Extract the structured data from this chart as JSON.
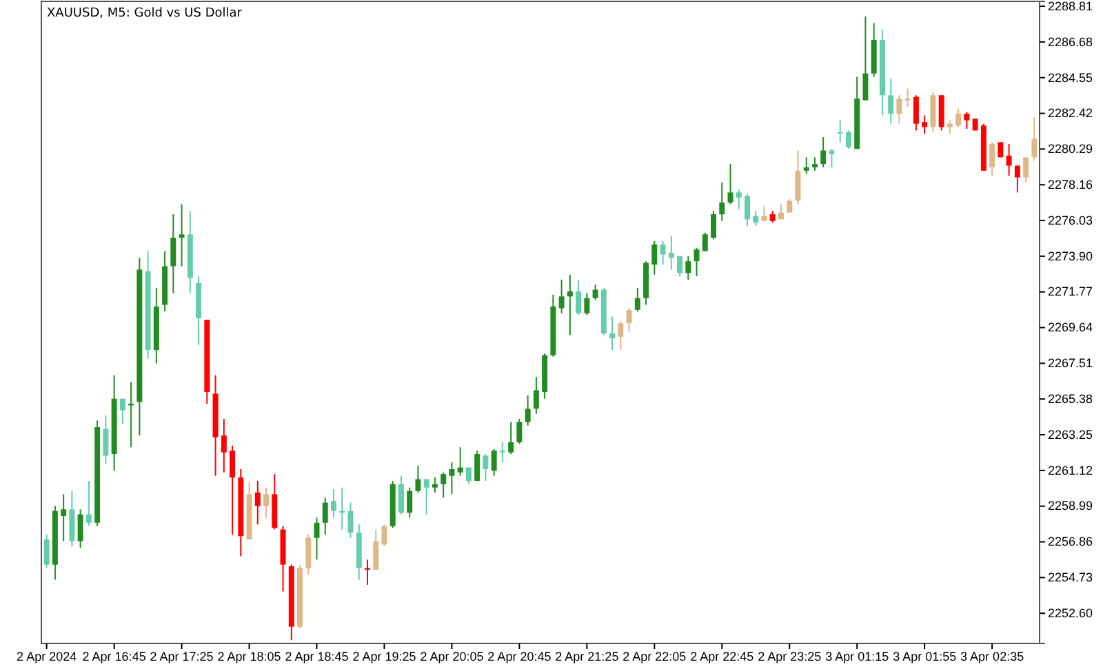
{
  "chart_data": {
    "type": "candlestick",
    "title": "XAUUSD, M5:  Gold vs US Dollar",
    "categories": [
      "2 Apr 2024",
      null,
      null,
      null,
      null,
      null,
      null,
      null,
      "2 Apr 16:45",
      null,
      null,
      null,
      null,
      null,
      null,
      null,
      "2 Apr 17:25",
      null,
      null,
      null,
      null,
      null,
      null,
      null,
      "2 Apr 18:05",
      null,
      null,
      null,
      null,
      null,
      null,
      null,
      "2 Apr 18:45",
      null,
      null,
      null,
      null,
      null,
      null,
      null,
      "2 Apr 19:25",
      null,
      null,
      null,
      null,
      null,
      null,
      null,
      "2 Apr 20:05",
      null,
      null,
      null,
      null,
      null,
      null,
      null,
      "2 Apr 20:45",
      null,
      null,
      null,
      null,
      null,
      null,
      null,
      "2 Apr 21:25",
      null,
      null,
      null,
      null,
      null,
      null,
      null,
      "2 Apr 22:05",
      null,
      null,
      null,
      null,
      null,
      null,
      null,
      "2 Apr 22:45",
      null,
      null,
      null,
      null,
      null,
      null,
      null,
      "2 Apr 23:25",
      null,
      null,
      null,
      null,
      null,
      null,
      null,
      "3 Apr 01:15",
      null,
      null,
      null,
      null,
      null,
      null,
      null,
      "3 Apr 01:55",
      null,
      null,
      null,
      null,
      null,
      null,
      null,
      "3 Apr 02:35",
      null,
      null,
      null,
      null,
      null
    ],
    "ohlc": [
      [
        2257.0,
        2257.3,
        2255.3,
        2255.5
      ],
      [
        2255.5,
        2259.0,
        2254.6,
        2258.7
      ],
      [
        2258.4,
        2259.7,
        2256.9,
        2258.8
      ],
      [
        2258.8,
        2259.9,
        2256.6,
        2256.9
      ],
      [
        2256.9,
        2258.8,
        2256.5,
        2258.5
      ],
      [
        2258.5,
        2260.5,
        2257.8,
        2258.0
      ],
      [
        2258.0,
        2264.1,
        2257.8,
        2263.7
      ],
      [
        2263.6,
        2264.4,
        2261.5,
        2262.0
      ],
      [
        2262.1,
        2266.8,
        2261.1,
        2265.4
      ],
      [
        2265.4,
        2265.4,
        2263.9,
        2264.7
      ],
      [
        2265.0,
        2266.4,
        2262.5,
        2265.1
      ],
      [
        2265.2,
        2273.8,
        2263.2,
        2273.1
      ],
      [
        2273.0,
        2274.2,
        2267.8,
        2268.3
      ],
      [
        2268.3,
        2272.0,
        2267.5,
        2270.9
      ],
      [
        2271.0,
        2274.2,
        2270.6,
        2273.3
      ],
      [
        2273.3,
        2276.4,
        2271.7,
        2275.0
      ],
      [
        2275.0,
        2277.0,
        2273.3,
        2275.2
      ],
      [
        2275.2,
        2276.6,
        2271.7,
        2272.6
      ],
      [
        2272.3,
        2272.7,
        2268.6,
        2270.2
      ],
      [
        2270.1,
        2270.1,
        2265.1,
        2265.8
      ],
      [
        2265.7,
        2266.8,
        2260.8,
        2263.1
      ],
      [
        2263.2,
        2264.2,
        2261.0,
        2262.2
      ],
      [
        2262.3,
        2262.6,
        2257.3,
        2260.7
      ],
      [
        2260.7,
        2261.2,
        2256.0,
        2257.2
      ],
      [
        2257.0,
        2260.4,
        2257.0,
        2259.7
      ],
      [
        2259.8,
        2260.5,
        2257.9,
        2259.0
      ],
      [
        2259.0,
        2260.1,
        2258.3,
        2259.7
      ],
      [
        2259.7,
        2260.9,
        2257.6,
        2257.7
      ],
      [
        2257.6,
        2257.8,
        2253.9,
        2255.5
      ],
      [
        2255.4,
        2255.5,
        2251.0,
        2251.8
      ],
      [
        2251.8,
        2255.5,
        2251.7,
        2255.3
      ],
      [
        2255.3,
        2257.3,
        2254.9,
        2257.1
      ],
      [
        2257.1,
        2258.3,
        2255.8,
        2258.0
      ],
      [
        2258.0,
        2259.5,
        2257.3,
        2259.2
      ],
      [
        2259.3,
        2260.0,
        2258.3,
        2258.7
      ],
      [
        2258.7,
        2260.1,
        2257.6,
        2258.6
      ],
      [
        2258.7,
        2259.2,
        2257.1,
        2257.4
      ],
      [
        2257.4,
        2257.9,
        2254.6,
        2255.3
      ],
      [
        2255.3,
        2255.8,
        2254.3,
        2255.2
      ],
      [
        2255.2,
        2257.6,
        2255.2,
        2256.9
      ],
      [
        2256.7,
        2257.9,
        2256.6,
        2257.8
      ],
      [
        2257.8,
        2260.5,
        2257.7,
        2260.3
      ],
      [
        2260.3,
        2260.8,
        2258.5,
        2258.6
      ],
      [
        2258.6,
        2260.1,
        2258.3,
        2259.9
      ],
      [
        2259.9,
        2261.4,
        2259.8,
        2260.6
      ],
      [
        2260.6,
        2260.6,
        2258.5,
        2260.1
      ],
      [
        2260.1,
        2260.7,
        2259.8,
        2260.3
      ],
      [
        2260.3,
        2261.0,
        2259.5,
        2260.9
      ],
      [
        2260.8,
        2261.6,
        2259.7,
        2261.2
      ],
      [
        2261.0,
        2262.5,
        2260.8,
        2261.3
      ],
      [
        2261.3,
        2261.3,
        2260.3,
        2260.5
      ],
      [
        2260.5,
        2262.3,
        2260.5,
        2262.1
      ],
      [
        2262.0,
        2262.1,
        2260.5,
        2261.2
      ],
      [
        2261.1,
        2262.4,
        2260.8,
        2262.3
      ],
      [
        2262.3,
        2262.8,
        2261.6,
        2262.2
      ],
      [
        2262.2,
        2264.0,
        2262.1,
        2262.8
      ],
      [
        2262.8,
        2264.2,
        2262.7,
        2264.0
      ],
      [
        2264.0,
        2265.6,
        2263.8,
        2264.8
      ],
      [
        2264.8,
        2266.7,
        2264.5,
        2265.9
      ],
      [
        2265.8,
        2268.1,
        2265.4,
        2268.0
      ],
      [
        2268.0,
        2271.6,
        2267.9,
        2270.9
      ],
      [
        2270.8,
        2272.5,
        2270.5,
        2271.5
      ],
      [
        2271.5,
        2272.8,
        2269.2,
        2271.8
      ],
      [
        2271.8,
        2272.5,
        2270.4,
        2270.5
      ],
      [
        2270.5,
        2271.7,
        2270.4,
        2271.4
      ],
      [
        2271.4,
        2272.2,
        2271.3,
        2271.9
      ],
      [
        2271.9,
        2272.0,
        2269.2,
        2269.3
      ],
      [
        2269.3,
        2270.3,
        2268.3,
        2269.0
      ],
      [
        2269.1,
        2270.0,
        2268.3,
        2269.9
      ],
      [
        2269.9,
        2270.8,
        2269.4,
        2270.7
      ],
      [
        2270.7,
        2272.0,
        2270.6,
        2271.4
      ],
      [
        2271.4,
        2273.6,
        2271.0,
        2273.5
      ],
      [
        2273.4,
        2274.8,
        2272.8,
        2274.6
      ],
      [
        2274.6,
        2274.8,
        2273.4,
        2274.0
      ],
      [
        2274.1,
        2275.1,
        2273.1,
        2273.8
      ],
      [
        2273.9,
        2273.9,
        2272.7,
        2272.9
      ],
      [
        2272.9,
        2273.9,
        2272.5,
        2273.6
      ],
      [
        2273.6,
        2274.4,
        2272.7,
        2274.3
      ],
      [
        2274.2,
        2275.3,
        2274.2,
        2275.2
      ],
      [
        2275.0,
        2276.6,
        2274.9,
        2276.4
      ],
      [
        2276.4,
        2278.3,
        2276.0,
        2277.1
      ],
      [
        2277.1,
        2279.4,
        2277.0,
        2277.7
      ],
      [
        2277.7,
        2277.9,
        2276.7,
        2277.4
      ],
      [
        2277.5,
        2277.6,
        2275.7,
        2276.1
      ],
      [
        2276.3,
        2276.6,
        2275.7,
        2275.9
      ],
      [
        2276.0,
        2276.9,
        2276.0,
        2276.3
      ],
      [
        2276.4,
        2276.6,
        2275.9,
        2276.0
      ],
      [
        2276.1,
        2277.0,
        2276.1,
        2276.5
      ],
      [
        2276.5,
        2277.3,
        2276.5,
        2277.2
      ],
      [
        2277.2,
        2280.2,
        2277.0,
        2279.0
      ],
      [
        2279.0,
        2279.8,
        2278.8,
        2279.2
      ],
      [
        2279.2,
        2279.8,
        2279.0,
        2279.4
      ],
      [
        2279.4,
        2281.0,
        2279.2,
        2280.2
      ],
      [
        2280.2,
        2280.3,
        2279.2,
        2280.0
      ],
      [
        2281.3,
        2282.0,
        2280.7,
        2281.3
      ],
      [
        2281.3,
        2281.4,
        2280.3,
        2280.4
      ],
      [
        2280.3,
        2284.6,
        2280.3,
        2283.3
      ],
      [
        2283.2,
        2288.2,
        2283.2,
        2284.8
      ],
      [
        2284.8,
        2287.8,
        2284.6,
        2286.8
      ],
      [
        2286.8,
        2287.4,
        2282.3,
        2283.5
      ],
      [
        2283.5,
        2284.5,
        2281.8,
        2282.4
      ],
      [
        2282.4,
        2283.5,
        2281.8,
        2283.3
      ],
      [
        2283.2,
        2283.9,
        2282.8,
        2283.3
      ],
      [
        2283.4,
        2283.5,
        2281.4,
        2281.8
      ],
      [
        2281.9,
        2282.3,
        2281.2,
        2281.6
      ],
      [
        2281.6,
        2283.7,
        2281.3,
        2283.5
      ],
      [
        2283.5,
        2283.5,
        2281.4,
        2281.6
      ],
      [
        2281.6,
        2282.0,
        2281.2,
        2281.8
      ],
      [
        2281.7,
        2282.7,
        2281.6,
        2282.4
      ],
      [
        2282.4,
        2282.5,
        2281.5,
        2282.0
      ],
      [
        2282.1,
        2282.1,
        2281.4,
        2281.4
      ],
      [
        2281.7,
        2281.8,
        2279.0,
        2279.0
      ],
      [
        2279.2,
        2280.7,
        2278.7,
        2280.6
      ],
      [
        2280.7,
        2280.7,
        2279.8,
        2279.8
      ],
      [
        2279.9,
        2280.6,
        2278.7,
        2279.3
      ],
      [
        2279.3,
        2279.3,
        2277.7,
        2278.6
      ],
      [
        2278.6,
        2279.8,
        2278.3,
        2279.8
      ],
      [
        2279.8,
        2282.2,
        2279.6,
        2280.9
      ]
    ],
    "colors": [
      "#66cdaa",
      "#228b22",
      "#228b22",
      "#66cdaa",
      "#228b22",
      "#66cdaa",
      "#228b22",
      "#66cdaa",
      "#228b22",
      "#66cdaa",
      "#228b22",
      "#228b22",
      "#66cdaa",
      "#228b22",
      "#228b22",
      "#228b22",
      "#228b22",
      "#66cdaa",
      "#66cdaa",
      "#ff0000",
      "#ff0000",
      "#ff0000",
      "#ff0000",
      "#ff0000",
      "#deb887",
      "#ff0000",
      "#deb887",
      "#ff0000",
      "#ff0000",
      "#ff0000",
      "#deb887",
      "#deb887",
      "#228b22",
      "#228b22",
      "#66cdaa",
      "#66cdaa",
      "#66cdaa",
      "#66cdaa",
      "#ff0000",
      "#deb887",
      "#deb887",
      "#228b22",
      "#66cdaa",
      "#228b22",
      "#228b22",
      "#66cdaa",
      "#228b22",
      "#228b22",
      "#228b22",
      "#228b22",
      "#66cdaa",
      "#228b22",
      "#66cdaa",
      "#228b22",
      "#66cdaa",
      "#228b22",
      "#228b22",
      "#228b22",
      "#228b22",
      "#228b22",
      "#228b22",
      "#228b22",
      "#228b22",
      "#66cdaa",
      "#228b22",
      "#228b22",
      "#66cdaa",
      "#66cdaa",
      "#deb887",
      "#deb887",
      "#228b22",
      "#228b22",
      "#228b22",
      "#66cdaa",
      "#66cdaa",
      "#66cdaa",
      "#228b22",
      "#228b22",
      "#228b22",
      "#228b22",
      "#228b22",
      "#228b22",
      "#66cdaa",
      "#66cdaa",
      "#66cdaa",
      "#deb887",
      "#ff0000",
      "#deb887",
      "#deb887",
      "#deb887",
      "#228b22",
      "#228b22",
      "#228b22",
      "#66cdaa",
      "#66cdaa",
      "#66cdaa",
      "#228b22",
      "#228b22",
      "#228b22",
      "#66cdaa",
      "#66cdaa",
      "#deb887",
      "#deb887",
      "#ff0000",
      "#ff0000",
      "#deb887",
      "#ff0000",
      "#deb887",
      "#deb887",
      "#ff0000",
      "#ff0000",
      "#ff0000",
      "#deb887",
      "#ff0000",
      "#ff0000",
      "#ff0000",
      "#deb887",
      "#deb887"
    ],
    "ylim": [
      2250.8,
      2289.1
    ],
    "yticks": [
      {
        "value": 2252.6,
        "label": "2252.60"
      },
      2254.73,
      2256.86,
      2258.99,
      2261.12,
      2263.25,
      2265.38,
      2267.51,
      2269.64,
      2271.77,
      {
        "value": 2273.9,
        "label": "2273.90"
      },
      2276.03,
      2278.16,
      2280.29,
      2282.42,
      2284.55,
      2286.68,
      2288.81
    ]
  }
}
